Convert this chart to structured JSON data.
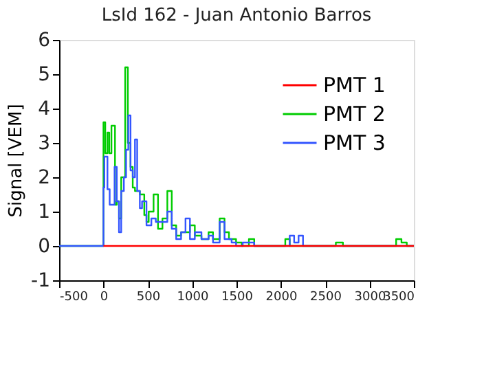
{
  "chart_data": {
    "type": "step",
    "title": "LsId 162 - Juan Antonio Barros",
    "ylabel": "Signal [VEM]",
    "xlim": [
      -500,
      3500
    ],
    "xticks": [
      -500,
      0,
      500,
      1000,
      1500,
      2000,
      2500,
      3000,
      3500
    ],
    "ylim": [
      -1,
      6
    ],
    "yticks": [
      -1,
      0,
      1,
      2,
      3,
      4,
      5,
      6
    ],
    "grid": false,
    "legend": "top right",
    "marker": "none",
    "line_style": "solid",
    "series": [
      {
        "name": "PMT 1",
        "color": "#ff0000",
        "x": [
          0,
          3500
        ],
        "values": [
          0,
          0
        ]
      },
      {
        "name": "PMT 2",
        "color": "#00cc00",
        "x": [
          -500,
          0,
          20,
          45,
          65,
          90,
          130,
          150,
          175,
          200,
          245,
          275,
          305,
          330,
          355,
          410,
          460,
          485,
          510,
          565,
          615,
          665,
          720,
          770,
          820,
          875,
          975,
          1030,
          1105,
          1185,
          1235,
          1310,
          1365,
          1415,
          1495,
          1560,
          1640,
          1700,
          2050,
          2100,
          2620,
          2700,
          3300,
          3360,
          3420,
          3500
        ],
        "values": [
          0,
          3.6,
          2.7,
          3.3,
          2.7,
          3.5,
          1.2,
          1.3,
          0.8,
          2.0,
          5.2,
          3.0,
          2.3,
          1.7,
          1.6,
          1.5,
          0.9,
          0.7,
          1.0,
          1.5,
          0.5,
          0.8,
          1.6,
          0.6,
          0.3,
          0.4,
          0.6,
          0.3,
          0.2,
          0.4,
          0.2,
          0.8,
          0.4,
          0.2,
          0.1,
          0,
          0.2,
          0,
          0.2,
          0,
          0.1,
          0,
          0.2,
          0.1,
          0,
          0
        ]
      },
      {
        "name": "PMT 3",
        "color": "#3355ff",
        "x": [
          -500,
          0,
          10,
          45,
          70,
          125,
          150,
          175,
          200,
          230,
          255,
          280,
          305,
          330,
          355,
          380,
          410,
          435,
          485,
          540,
          590,
          640,
          720,
          770,
          820,
          875,
          925,
          975,
          1030,
          1105,
          1185,
          1235,
          1310,
          1365,
          1445,
          1495,
          1570,
          1700,
          2100,
          2150,
          2200,
          2250,
          3500
        ],
        "values": [
          0,
          1.7,
          2.6,
          1.65,
          1.2,
          2.3,
          1.3,
          0.4,
          1.6,
          2.0,
          2.8,
          3.8,
          2.2,
          2.0,
          3.1,
          1.6,
          1.1,
          1.3,
          0.6,
          0.8,
          0.7,
          0.7,
          1.0,
          0.5,
          0.2,
          0.4,
          0.8,
          0.2,
          0.4,
          0.2,
          0.3,
          0.1,
          0.7,
          0.2,
          0.1,
          0,
          0.1,
          0,
          0.3,
          0.1,
          0.3,
          0,
          0
        ]
      }
    ]
  }
}
